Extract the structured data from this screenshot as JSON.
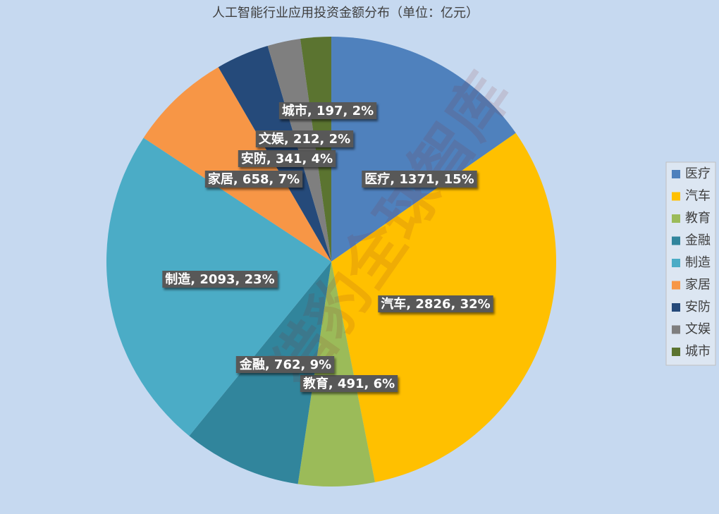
{
  "chart_data": {
    "type": "pie",
    "title": "人工智能行业应用投资金额分布（单位：亿元）",
    "watermark": "猎豹全球智库",
    "categories": [
      "医疗",
      "汽车",
      "教育",
      "金融",
      "制造",
      "家居",
      "安防",
      "文娱",
      "城市"
    ],
    "values": [
      1371,
      2826,
      491,
      762,
      2093,
      658,
      341,
      212,
      197
    ],
    "value_labels": [
      "医疗, 1371, 15%",
      "汽车, 2826, 32%",
      "教育, 491, 6%",
      "金融, 762, 9%",
      "制造, 2093, 23%",
      "家居, 658, 7%",
      "安防, 341, 4%",
      "文娱, 212, 2%",
      "城市, 197, 2%"
    ],
    "colors": [
      "#4f81bd",
      "#ffc000",
      "#9bbb59",
      "#31859c",
      "#4bacc6",
      "#f79646",
      "#254a7a",
      "#7f7f7f",
      "#5b7430"
    ],
    "legend": "right"
  }
}
